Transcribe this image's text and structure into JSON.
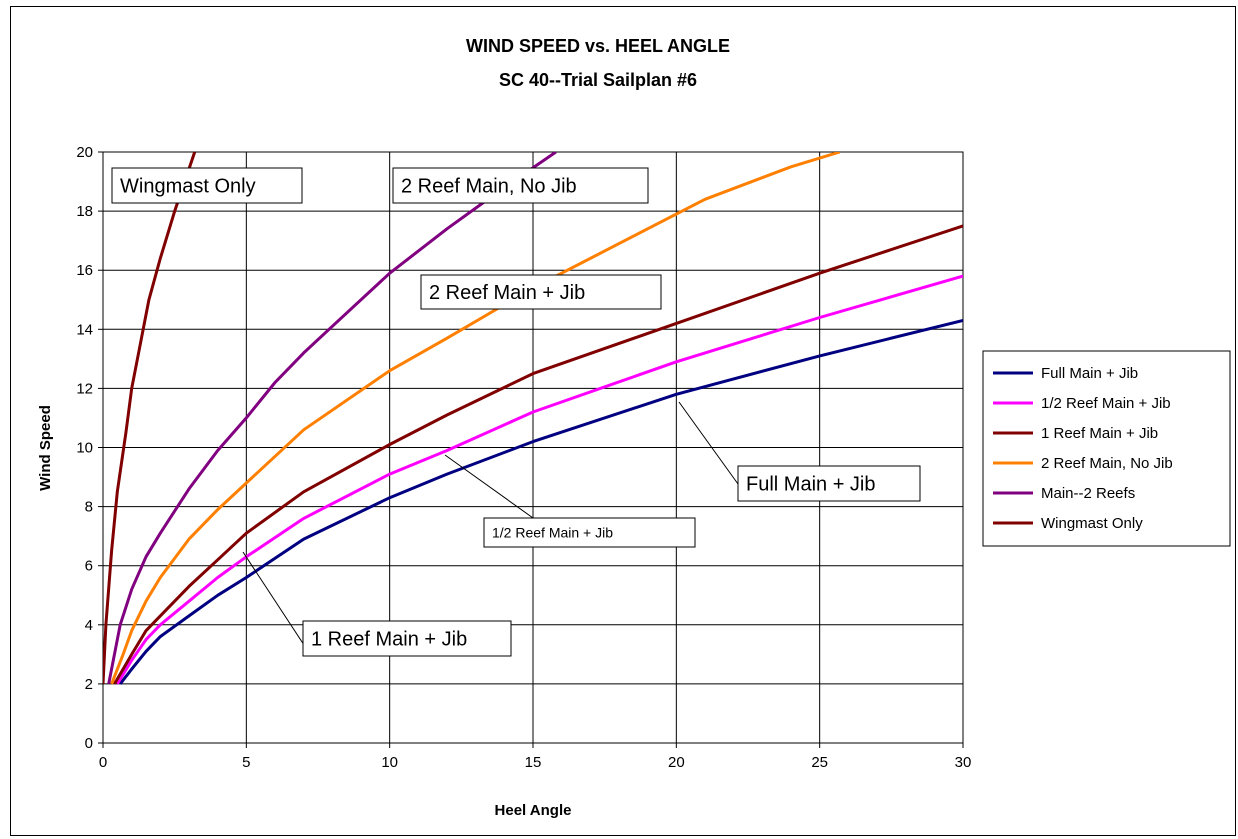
{
  "chart_data": {
    "type": "line",
    "title": "WIND SPEED vs. HEEL ANGLE",
    "subtitle": "SC 40--Trial Sailplan #6",
    "xlabel": "Heel Angle",
    "ylabel": "Wind Speed",
    "xlim": [
      0,
      30
    ],
    "ylim": [
      0,
      20
    ],
    "xticks": [
      0,
      5,
      10,
      15,
      20,
      25,
      30
    ],
    "yticks": [
      0,
      2,
      4,
      6,
      8,
      10,
      12,
      14,
      16,
      18,
      20
    ],
    "grid": true,
    "legend_position": "right",
    "series": [
      {
        "name": "Full Main + Jib",
        "color": "#000080",
        "x": [
          0.6,
          1.0,
          1.5,
          2.0,
          3.0,
          4.0,
          5.0,
          7.0,
          10.0,
          12.0,
          15.0,
          20.0,
          25.0,
          30.0
        ],
        "y": [
          2.0,
          2.5,
          3.1,
          3.6,
          4.3,
          5.0,
          5.6,
          6.9,
          8.3,
          9.1,
          10.2,
          11.8,
          13.1,
          14.3
        ]
      },
      {
        "name": "1/2 Reef Main + Jib",
        "color": "#ff00ff",
        "x": [
          0.5,
          1.0,
          1.5,
          2.0,
          3.0,
          4.0,
          5.0,
          7.0,
          10.0,
          12.0,
          15.0,
          20.0,
          25.0,
          30.0
        ],
        "y": [
          2.0,
          2.8,
          3.5,
          4.0,
          4.8,
          5.6,
          6.3,
          7.6,
          9.1,
          9.9,
          11.2,
          12.9,
          14.4,
          15.8
        ]
      },
      {
        "name": "1 Reef Main + Jib",
        "color": "#800000",
        "x": [
          0.4,
          1.0,
          1.5,
          2.0,
          3.0,
          4.0,
          5.0,
          7.0,
          10.0,
          12.0,
          15.0,
          20.0,
          25.0,
          30.0
        ],
        "y": [
          2.0,
          3.0,
          3.8,
          4.3,
          5.3,
          6.2,
          7.1,
          8.5,
          10.1,
          11.1,
          12.5,
          14.2,
          15.9,
          17.5
        ]
      },
      {
        "name": "2 Reef Main, No Jib",
        "color": "#ff8000",
        "x": [
          0.3,
          0.7,
          1.0,
          1.5,
          2.0,
          3.0,
          4.0,
          5.0,
          7.0,
          10.0,
          12.0,
          15.0,
          18.0,
          21.0,
          24.0,
          25.7
        ],
        "y": [
          2.0,
          3.0,
          3.8,
          4.8,
          5.6,
          6.9,
          7.9,
          8.8,
          10.6,
          12.6,
          13.7,
          15.4,
          16.9,
          18.4,
          19.5,
          20.0
        ]
      },
      {
        "name": "Main--2 Reefs",
        "color": "#800080",
        "x": [
          0.2,
          0.6,
          1.0,
          1.5,
          2.0,
          3.0,
          4.0,
          5.0,
          6.0,
          7.0,
          8.0,
          10.0,
          12.0,
          14.0,
          15.8
        ],
        "y": [
          2.0,
          4.0,
          5.2,
          6.3,
          7.1,
          8.6,
          9.9,
          11.0,
          12.2,
          13.2,
          14.1,
          15.9,
          17.4,
          18.8,
          20.0
        ]
      },
      {
        "name": "Wingmast Only",
        "color": "#800000",
        "x": [
          0.0,
          0.1,
          0.3,
          0.5,
          0.8,
          1.0,
          1.3,
          1.6,
          2.0,
          2.5,
          3.2
        ],
        "y": [
          2.0,
          4.0,
          6.5,
          8.5,
          10.5,
          12.0,
          13.5,
          15.0,
          16.4,
          18.0,
          20.0
        ]
      }
    ],
    "annotations": [
      {
        "text": "Wingmast Only",
        "size": 20
      },
      {
        "text": "2 Reef Main, No Jib",
        "size": 20
      },
      {
        "text": "2 Reef Main + Jib",
        "size": 20
      },
      {
        "text": "Full Main + Jib",
        "size": 20
      },
      {
        "text": "1/2 Reef Main + Jib",
        "size": 14
      },
      {
        "text": "1 Reef Main + Jib",
        "size": 20
      }
    ]
  }
}
